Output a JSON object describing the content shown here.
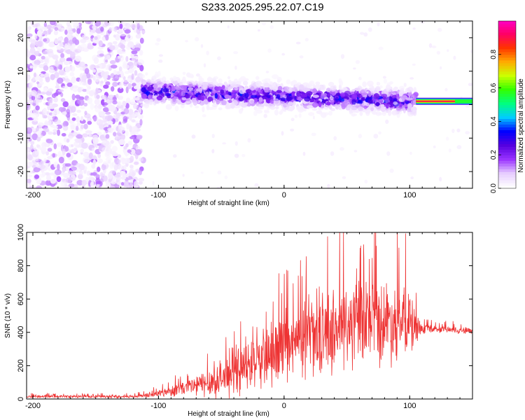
{
  "title": "S233.2025.295.22.07.C19",
  "chart_data": [
    {
      "type": "heatmap",
      "name": "spectrogram",
      "xlabel": "Height of straight line (km)",
      "ylabel": "Frequency (Hz)",
      "xlim": [
        -205,
        150
      ],
      "ylim": [
        -25,
        25
      ],
      "xticks": [
        -200,
        -100,
        0,
        100
      ],
      "yticks": [
        -20,
        -10,
        0,
        10,
        20
      ],
      "colorbar": {
        "label": "Normalized spectral amplitude",
        "range": [
          0,
          1
        ],
        "ticks": [
          "0.0",
          "0.2",
          "0.4",
          "0.6",
          "0.8"
        ],
        "colors": [
          "#ffffff",
          "#e6ccff",
          "#9a33ff",
          "#5500e0",
          "#0000ff",
          "#00ccff",
          "#00ff80",
          "#33ff00",
          "#ccff00",
          "#ffaa00",
          "#ff3300",
          "#ff0066",
          "#ff00cc"
        ]
      },
      "regions": [
        {
          "description_id": "noise",
          "x_range": [
            -205,
            -112
          ],
          "f_range": [
            -25,
            25
          ],
          "amplitude_range": [
            0.02,
            0.15
          ]
        },
        {
          "description_id": "band",
          "x_range": [
            -112,
            105
          ],
          "f_center_start": 4,
          "f_center_end": 1,
          "f_halfwidth": 5,
          "amplitude_range": [
            0.1,
            0.3
          ]
        },
        {
          "description_id": "tone",
          "x_range": [
            105,
            150
          ],
          "f_center": 1,
          "amplitude_peak": 0.9
        }
      ]
    },
    {
      "type": "line",
      "name": "snr",
      "xlabel": "Height of straight line (km)",
      "ylabel": "SNR (10 * v/v)",
      "xlim": [
        -205,
        150
      ],
      "ylim": [
        0,
        1000
      ],
      "xticks": [
        -200,
        -100,
        0,
        100
      ],
      "yticks": [
        0,
        200,
        400,
        600,
        800,
        1000
      ],
      "color": "#ee3333",
      "envelope": {
        "x": [
          -205,
          -120,
          -105,
          -90,
          -70,
          -50,
          -30,
          -10,
          10,
          30,
          50,
          70,
          85,
          100,
          108,
          120,
          150
        ],
        "mean": [
          15,
          15,
          25,
          50,
          80,
          120,
          190,
          260,
          330,
          390,
          440,
          460,
          470,
          440,
          420,
          420,
          410
        ],
        "spread": [
          10,
          10,
          20,
          40,
          80,
          130,
          170,
          220,
          250,
          280,
          320,
          300,
          300,
          250,
          40,
          25,
          25
        ]
      }
    }
  ]
}
